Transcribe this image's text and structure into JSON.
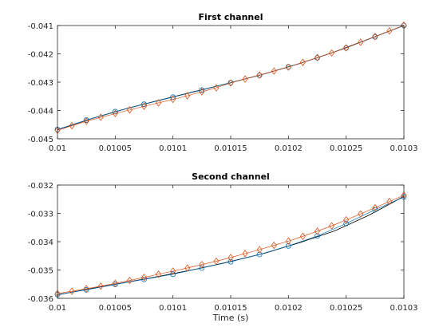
{
  "chart_data": [
    {
      "type": "line",
      "title": "First channel",
      "xlabel": "",
      "ylabel": "",
      "xlim": [
        0.01,
        0.0103
      ],
      "ylim": [
        -0.045,
        -0.041
      ],
      "xticks": [
        "0.01",
        "0.01005",
        "0.0101",
        "0.01015",
        "0.0102",
        "0.01025",
        "0.0103"
      ],
      "yticks": [
        "-0.045",
        "-0.044",
        "-0.043",
        "-0.042",
        "-0.041"
      ],
      "grid": false,
      "series": [
        {
          "color": "#000000",
          "marker": "none",
          "x": [
            0.01,
            0.01003,
            0.01006,
            0.01009,
            0.01012,
            0.01015,
            0.01018,
            0.01021,
            0.01024,
            0.01027,
            0.0103
          ],
          "y": [
            -0.04468,
            -0.04428,
            -0.04393,
            -0.04362,
            -0.04332,
            -0.04302,
            -0.0427,
            -0.04234,
            -0.04193,
            -0.04147,
            -0.041
          ]
        },
        {
          "color": "#0072BD",
          "marker": "circle",
          "x": [
            0.01,
            0.010025,
            0.01005,
            0.010075,
            0.0101,
            0.010125,
            0.01015,
            0.010175,
            0.0102,
            0.010225,
            0.01025,
            0.010275,
            0.0103
          ],
          "y": [
            -0.04467,
            -0.04434,
            -0.04404,
            -0.04378,
            -0.04353,
            -0.04328,
            -0.04302,
            -0.04276,
            -0.04246,
            -0.04214,
            -0.04179,
            -0.0414,
            -0.041
          ]
        },
        {
          "color": "#D95319",
          "marker": "diamond",
          "x": [
            0.01,
            0.0100125,
            0.010025,
            0.0100375,
            0.01005,
            0.0100625,
            0.010075,
            0.0100875,
            0.0101,
            0.0101125,
            0.010125,
            0.0101375,
            0.01015,
            0.0101625,
            0.010175,
            0.0101875,
            0.0102,
            0.0102125,
            0.010225,
            0.0102375,
            0.01025,
            0.0102625,
            0.010275,
            0.0102875,
            0.0103
          ],
          "y": [
            -0.0447,
            -0.04454,
            -0.04438,
            -0.04424,
            -0.04411,
            -0.04398,
            -0.04385,
            -0.04373,
            -0.04361,
            -0.04348,
            -0.04334,
            -0.0432,
            -0.04303,
            -0.04289,
            -0.04275,
            -0.04261,
            -0.04247,
            -0.0423,
            -0.04213,
            -0.04197,
            -0.04179,
            -0.04159,
            -0.04139,
            -0.04119,
            -0.04099
          ]
        }
      ]
    },
    {
      "type": "line",
      "title": "Second channel",
      "xlabel": "Time (s)",
      "ylabel": "",
      "xlim": [
        0.01,
        0.0103
      ],
      "ylim": [
        -0.036,
        -0.032
      ],
      "xticks": [
        "0.01",
        "0.01005",
        "0.0101",
        "0.01015",
        "0.0102",
        "0.01025",
        "0.0103"
      ],
      "yticks": [
        "-0.036",
        "-0.035",
        "-0.034",
        "-0.033",
        "-0.032"
      ],
      "grid": false,
      "series": [
        {
          "color": "#000000",
          "marker": "none",
          "x": [
            0.01,
            0.01003,
            0.01006,
            0.01009,
            0.01012,
            0.01015,
            0.01018,
            0.01021,
            0.01024,
            0.01027,
            0.0103
          ],
          "y": [
            -0.03588,
            -0.03565,
            -0.03543,
            -0.03521,
            -0.03497,
            -0.0347,
            -0.0344,
            -0.03403,
            -0.03362,
            -0.03306,
            -0.0324
          ]
        },
        {
          "color": "#0072BD",
          "marker": "circle",
          "x": [
            0.01,
            0.010025,
            0.01005,
            0.010075,
            0.0101,
            0.010125,
            0.01015,
            0.010175,
            0.0102,
            0.010225,
            0.01025,
            0.010275,
            0.0103
          ],
          "y": [
            -0.03587,
            -0.0357,
            -0.03551,
            -0.03533,
            -0.03515,
            -0.03493,
            -0.03471,
            -0.03445,
            -0.03415,
            -0.0338,
            -0.03336,
            -0.03287,
            -0.03242
          ]
        },
        {
          "color": "#D95319",
          "marker": "diamond",
          "x": [
            0.01,
            0.0100125,
            0.010025,
            0.0100375,
            0.01005,
            0.0100625,
            0.010075,
            0.0100875,
            0.0101,
            0.0101125,
            0.010125,
            0.0101375,
            0.01015,
            0.0101625,
            0.010175,
            0.0101875,
            0.0102,
            0.0102125,
            0.010225,
            0.0102375,
            0.01025,
            0.0102625,
            0.010275,
            0.0102875,
            0.0103
          ],
          "y": [
            -0.03583,
            -0.03575,
            -0.03566,
            -0.03557,
            -0.03547,
            -0.03537,
            -0.03526,
            -0.03515,
            -0.03504,
            -0.03493,
            -0.03481,
            -0.03469,
            -0.03456,
            -0.03442,
            -0.03428,
            -0.03413,
            -0.03398,
            -0.03381,
            -0.03363,
            -0.03344,
            -0.03323,
            -0.03302,
            -0.0328,
            -0.03258,
            -0.03236
          ]
        }
      ]
    }
  ]
}
